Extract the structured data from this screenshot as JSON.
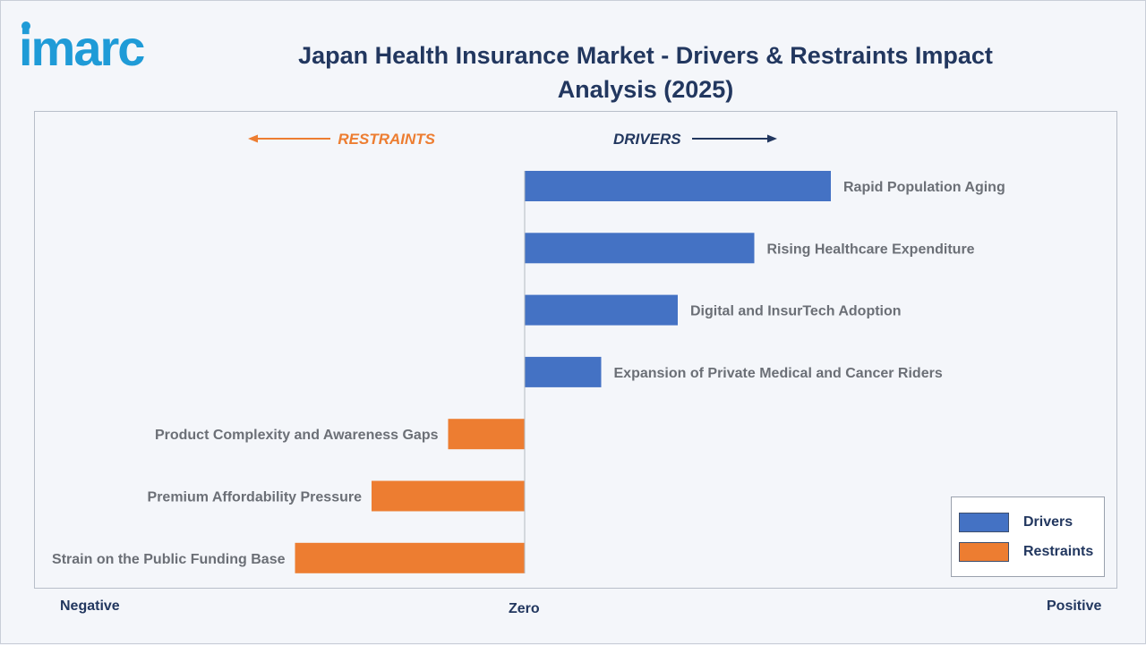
{
  "brand": {
    "logo_text": "imarc"
  },
  "colors": {
    "drivers": "#4472c4",
    "restraints": "#ed7d31",
    "title": "#22375f",
    "label": "#6b6f76"
  },
  "chart_data": {
    "type": "bar",
    "orientation": "horizontal",
    "title": "Japan Health Insurance Market - Drivers & Restraints Impact Analysis (2025)",
    "direction_labels": {
      "left": "RESTRAINTS",
      "right": "DRIVERS"
    },
    "axis_labels": {
      "negative": "Negative",
      "zero": "Zero",
      "positive": "Positive"
    },
    "xlim": [
      -4,
      4
    ],
    "bars": [
      {
        "label": "Rapid Population Aging",
        "value": 3.0,
        "series": "Drivers"
      },
      {
        "label": "Rising Healthcare Expenditure",
        "value": 2.25,
        "series": "Drivers"
      },
      {
        "label": "Digital and InsurTech Adoption",
        "value": 1.5,
        "series": "Drivers"
      },
      {
        "label": "Expansion of Private Medical and Cancer Riders",
        "value": 0.75,
        "series": "Drivers"
      },
      {
        "label": "Product Complexity and Awareness Gaps",
        "value": -0.75,
        "series": "Restraints"
      },
      {
        "label": "Premium Affordability Pressure",
        "value": -1.5,
        "series": "Restraints"
      },
      {
        "label": "Strain on the Public Funding Base",
        "value": -2.25,
        "series": "Restraints"
      }
    ],
    "legend": {
      "position": "bottom-right",
      "items": [
        {
          "name": "Drivers"
        },
        {
          "name": "Restraints"
        }
      ]
    }
  }
}
